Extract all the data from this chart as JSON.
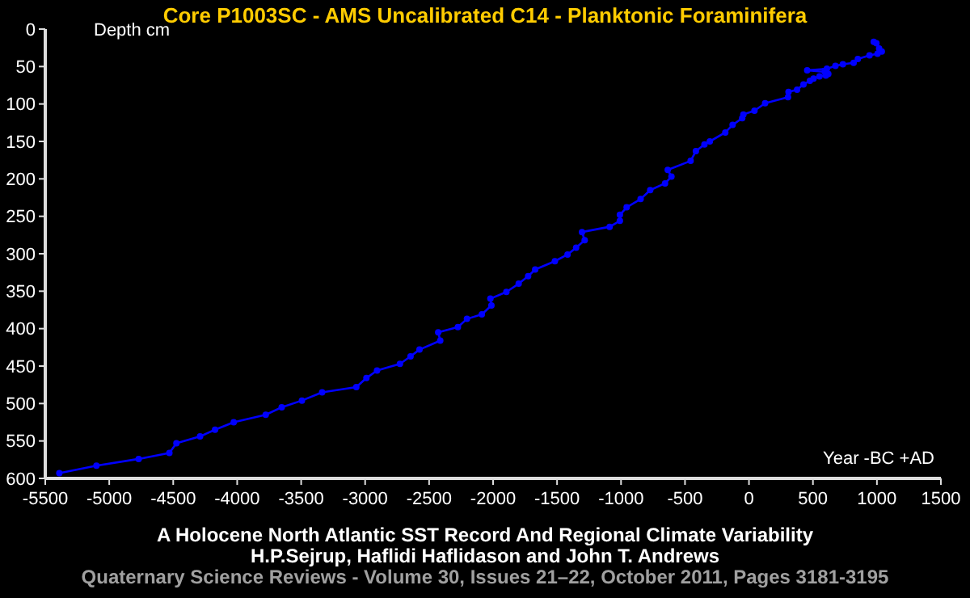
{
  "chart_data": {
    "type": "line",
    "title": "Core P1003SC - AMS Uncalibrated C14 - Planktonic Foraminifera",
    "subtitle": "A Holocene North Atlantic SST Record And Regional Climate Variability",
    "xlabel": "Year -BC +AD",
    "ylabel": "Depth cm",
    "annotations": [
      "H.P.Sejrup, Haflidi Haflidason and John T. Andrews",
      "Quaternary Science Reviews - Volume 30, Issues 21–22, October 2011, Pages 3181-3195"
    ],
    "series": [
      {
        "color": "#0000ff",
        "x": [
          -5390,
          -5100,
          -4770,
          -4530,
          -4475,
          -4290,
          -4173,
          -4027,
          -3777,
          -3652,
          -3494,
          -3336,
          -3069,
          -2990,
          -2907,
          -2728,
          -2645,
          -2575,
          -2413,
          -2429,
          -2275,
          -2204,
          -2088,
          -2013,
          -2021,
          -1896,
          -1800,
          -1726,
          -1671,
          -1517,
          -1418,
          -1351,
          -1284,
          -1305,
          -1089,
          -1009,
          -1009,
          -956,
          -847,
          -772,
          -656,
          -606,
          -635,
          -456,
          -415,
          -348,
          -306,
          -185,
          -128,
          -53,
          -44,
          43,
          126,
          305,
          309,
          376,
          426,
          476,
          505,
          551,
          601,
          620,
          592,
          455,
          609,
          676,
          734,
          818,
          851,
          942,
          1005,
          1038,
          1017,
          996,
          975
        ],
        "values": [
          593,
          583,
          574,
          566,
          553,
          544,
          535,
          525,
          515,
          505,
          496,
          485,
          478,
          466,
          456,
          447,
          437,
          428,
          416,
          405,
          398,
          387,
          381,
          369,
          360,
          351,
          340,
          330,
          321,
          310,
          301,
          292,
          282,
          271,
          264,
          256,
          248,
          238,
          227,
          215,
          206,
          197,
          188,
          176,
          163,
          154,
          150,
          138,
          128,
          119,
          114,
          109,
          99,
          91,
          84,
          81,
          74,
          69,
          66,
          63,
          62,
          60,
          57,
          55,
          53,
          49,
          47,
          45,
          40,
          35,
          33,
          30,
          26,
          19,
          17
        ]
      }
    ],
    "xlim": [
      -5500,
      1500
    ],
    "xticks": [
      -5500,
      -5000,
      -4500,
      -4000,
      -3500,
      -3000,
      -2500,
      -2000,
      -1500,
      -1000,
      -500,
      0,
      500,
      1000,
      1500
    ],
    "ylim": [
      600,
      0
    ],
    "yticks": [
      0,
      50,
      100,
      150,
      200,
      250,
      300,
      350,
      400,
      450,
      500,
      550,
      600
    ],
    "grid": false,
    "marker": "circle",
    "line_style": "solid"
  }
}
